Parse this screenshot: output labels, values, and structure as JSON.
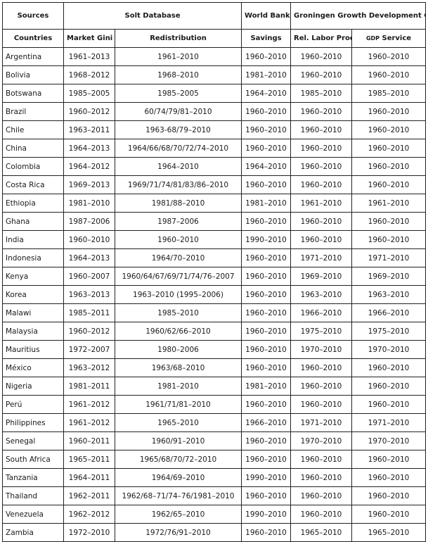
{
  "header": {
    "sources": "Sources",
    "solt": "Solt Database",
    "world_bank": "World Bank",
    "ggdc": "Groningen Growth Development Centre Data",
    "columns": {
      "countries": "Countries",
      "market_gini": "Market Gini",
      "redistribution": "Redistribution",
      "savings": "Savings",
      "rel_labor_prod": "Rel. Labor Prod.",
      "gdp_prefix": "GDP",
      "gdp_service": " Service"
    }
  },
  "rows": [
    [
      "Argentina",
      "1961–2013",
      "1961–2010",
      "1960–2010",
      "1960–2010",
      "1960–2010"
    ],
    [
      "Bolivia",
      "1968–2012",
      "1968–2010",
      "1981–2010",
      "1960–2010",
      "1960–2010"
    ],
    [
      "Botswana",
      "1985–2005",
      "1985–2005",
      "1964–2010",
      "1985–2010",
      "1985–2010"
    ],
    [
      "Brazil",
      "1960–2012",
      "60/74/79/81–2010",
      "1960–2010",
      "1960–2010",
      "1960–2010"
    ],
    [
      "Chile",
      "1963–2011",
      "1963-68/79–2010",
      "1960–2010",
      "1960–2010",
      "1960–2010"
    ],
    [
      "China",
      "1964–2013",
      "1964/66/68/70/72/74–2010",
      "1960–2010",
      "1960–2010",
      "1960–2010"
    ],
    [
      "Colombia",
      "1964–2012",
      "1964–2010",
      "1964–2010",
      "1960–2010",
      "1960–2010"
    ],
    [
      "Costa Rica",
      "1969–2013",
      "1969/71/74/81/83/86–2010",
      "1960–2010",
      "1960–2010",
      "1960–2010"
    ],
    [
      "Ethiopia",
      "1981–2010",
      "1981/88–2010",
      "1981–2010",
      "1961–2010",
      "1961–2010"
    ],
    [
      "Ghana",
      "1987–2006",
      "1987–2006",
      "1960–2010",
      "1960–2010",
      "1960–2010"
    ],
    [
      "India",
      "1960–2010",
      "1960–2010",
      "1990–2010",
      "1960–2010",
      "1960–2010"
    ],
    [
      "Indonesia",
      "1964–2013",
      "1964/70–2010",
      "1960–2010",
      "1971–2010",
      "1971–2010"
    ],
    [
      "Kenya",
      "1960–2007",
      "1960/64/67/69/71/74/76–2007",
      "1960–2010",
      "1969–2010",
      "1969–2010"
    ],
    [
      "Korea",
      "1963–2013",
      "1963–2010 (1995–2006)",
      "1960–2010",
      "1963–2010",
      "1963–2010"
    ],
    [
      "Malawi",
      "1985–2011",
      "1985–2010",
      "1960–2010",
      "1966–2010",
      "1966–2010"
    ],
    [
      "Malaysia",
      "1960–2012",
      "1960/62/66–2010",
      "1960–2010",
      "1975–2010",
      "1975–2010"
    ],
    [
      "Mauritius",
      "1972–2007",
      "1980–2006",
      "1960–2010",
      "1970–2010",
      "1970–2010"
    ],
    [
      "México",
      "1963–2012",
      "1963/68–2010",
      "1960–2010",
      "1960–2010",
      "1960–2010"
    ],
    [
      "Nigeria",
      "1981–2011",
      "1981–2010",
      "1981–2010",
      "1960–2010",
      "1960–2010"
    ],
    [
      "Perú",
      "1961–2012",
      "1961/71/81–2010",
      "1960–2010",
      "1960–2010",
      "1960–2010"
    ],
    [
      "Philippines",
      "1961–2012",
      "1965–2010",
      "1966–2010",
      "1971–2010",
      "1971–2010"
    ],
    [
      "Senegal",
      "1960–2011",
      "1960/91–2010",
      "1960–2010",
      "1970–2010",
      "1970–2010"
    ],
    [
      "South Africa",
      "1965–2011",
      "1965/68/70/72–2010",
      "1960–2010",
      "1960–2010",
      "1960–2010"
    ],
    [
      "Tanzania",
      "1964–2011",
      "1964/69–2010",
      "1990–2010",
      "1960–2010",
      "1960–2010"
    ],
    [
      "Thailand",
      "1962–2011",
      "1962/68–71/74–76/1981–2010",
      "1960–2010",
      "1960–2010",
      "1960–2010"
    ],
    [
      "Venezuela",
      "1962–2012",
      "1962/65–2010",
      "1990–2010",
      "1960–2010",
      "1960–2010"
    ],
    [
      "Zambia",
      "1972–2010",
      "1972/76/91–2010",
      "1960–2010",
      "1965–2010",
      "1965–2010"
    ]
  ]
}
